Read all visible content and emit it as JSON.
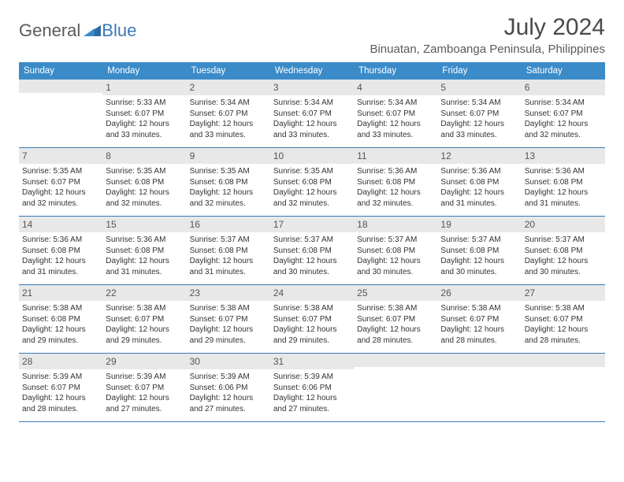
{
  "logo": {
    "word1": "General",
    "word2": "Blue"
  },
  "title": "July 2024",
  "location": "Binuatan, Zamboanga Peninsula, Philippines",
  "weekdays": [
    "Sunday",
    "Monday",
    "Tuesday",
    "Wednesday",
    "Thursday",
    "Friday",
    "Saturday"
  ],
  "colors": {
    "header_bg": "#3b8bc9",
    "row_border": "#3b7ab5",
    "daynum_bg": "#e8e8e8",
    "text": "#333333",
    "title_text": "#4a4a4a"
  },
  "typography": {
    "title_fontsize": 30,
    "location_fontsize": 15,
    "weekday_fontsize": 11.5,
    "cell_fontsize": 10,
    "daynum_fontsize": 12
  },
  "layout": {
    "columns": 7,
    "rows": 5,
    "leading_empty_cells": 1
  },
  "weeks": [
    [
      null,
      {
        "n": "1",
        "sunrise": "Sunrise: 5:33 AM",
        "sunset": "Sunset: 6:07 PM",
        "day1": "Daylight: 12 hours",
        "day2": "and 33 minutes."
      },
      {
        "n": "2",
        "sunrise": "Sunrise: 5:34 AM",
        "sunset": "Sunset: 6:07 PM",
        "day1": "Daylight: 12 hours",
        "day2": "and 33 minutes."
      },
      {
        "n": "3",
        "sunrise": "Sunrise: 5:34 AM",
        "sunset": "Sunset: 6:07 PM",
        "day1": "Daylight: 12 hours",
        "day2": "and 33 minutes."
      },
      {
        "n": "4",
        "sunrise": "Sunrise: 5:34 AM",
        "sunset": "Sunset: 6:07 PM",
        "day1": "Daylight: 12 hours",
        "day2": "and 33 minutes."
      },
      {
        "n": "5",
        "sunrise": "Sunrise: 5:34 AM",
        "sunset": "Sunset: 6:07 PM",
        "day1": "Daylight: 12 hours",
        "day2": "and 33 minutes."
      },
      {
        "n": "6",
        "sunrise": "Sunrise: 5:34 AM",
        "sunset": "Sunset: 6:07 PM",
        "day1": "Daylight: 12 hours",
        "day2": "and 32 minutes."
      }
    ],
    [
      {
        "n": "7",
        "sunrise": "Sunrise: 5:35 AM",
        "sunset": "Sunset: 6:07 PM",
        "day1": "Daylight: 12 hours",
        "day2": "and 32 minutes."
      },
      {
        "n": "8",
        "sunrise": "Sunrise: 5:35 AM",
        "sunset": "Sunset: 6:08 PM",
        "day1": "Daylight: 12 hours",
        "day2": "and 32 minutes."
      },
      {
        "n": "9",
        "sunrise": "Sunrise: 5:35 AM",
        "sunset": "Sunset: 6:08 PM",
        "day1": "Daylight: 12 hours",
        "day2": "and 32 minutes."
      },
      {
        "n": "10",
        "sunrise": "Sunrise: 5:35 AM",
        "sunset": "Sunset: 6:08 PM",
        "day1": "Daylight: 12 hours",
        "day2": "and 32 minutes."
      },
      {
        "n": "11",
        "sunrise": "Sunrise: 5:36 AM",
        "sunset": "Sunset: 6:08 PM",
        "day1": "Daylight: 12 hours",
        "day2": "and 32 minutes."
      },
      {
        "n": "12",
        "sunrise": "Sunrise: 5:36 AM",
        "sunset": "Sunset: 6:08 PM",
        "day1": "Daylight: 12 hours",
        "day2": "and 31 minutes."
      },
      {
        "n": "13",
        "sunrise": "Sunrise: 5:36 AM",
        "sunset": "Sunset: 6:08 PM",
        "day1": "Daylight: 12 hours",
        "day2": "and 31 minutes."
      }
    ],
    [
      {
        "n": "14",
        "sunrise": "Sunrise: 5:36 AM",
        "sunset": "Sunset: 6:08 PM",
        "day1": "Daylight: 12 hours",
        "day2": "and 31 minutes."
      },
      {
        "n": "15",
        "sunrise": "Sunrise: 5:36 AM",
        "sunset": "Sunset: 6:08 PM",
        "day1": "Daylight: 12 hours",
        "day2": "and 31 minutes."
      },
      {
        "n": "16",
        "sunrise": "Sunrise: 5:37 AM",
        "sunset": "Sunset: 6:08 PM",
        "day1": "Daylight: 12 hours",
        "day2": "and 31 minutes."
      },
      {
        "n": "17",
        "sunrise": "Sunrise: 5:37 AM",
        "sunset": "Sunset: 6:08 PM",
        "day1": "Daylight: 12 hours",
        "day2": "and 30 minutes."
      },
      {
        "n": "18",
        "sunrise": "Sunrise: 5:37 AM",
        "sunset": "Sunset: 6:08 PM",
        "day1": "Daylight: 12 hours",
        "day2": "and 30 minutes."
      },
      {
        "n": "19",
        "sunrise": "Sunrise: 5:37 AM",
        "sunset": "Sunset: 6:08 PM",
        "day1": "Daylight: 12 hours",
        "day2": "and 30 minutes."
      },
      {
        "n": "20",
        "sunrise": "Sunrise: 5:37 AM",
        "sunset": "Sunset: 6:08 PM",
        "day1": "Daylight: 12 hours",
        "day2": "and 30 minutes."
      }
    ],
    [
      {
        "n": "21",
        "sunrise": "Sunrise: 5:38 AM",
        "sunset": "Sunset: 6:08 PM",
        "day1": "Daylight: 12 hours",
        "day2": "and 29 minutes."
      },
      {
        "n": "22",
        "sunrise": "Sunrise: 5:38 AM",
        "sunset": "Sunset: 6:07 PM",
        "day1": "Daylight: 12 hours",
        "day2": "and 29 minutes."
      },
      {
        "n": "23",
        "sunrise": "Sunrise: 5:38 AM",
        "sunset": "Sunset: 6:07 PM",
        "day1": "Daylight: 12 hours",
        "day2": "and 29 minutes."
      },
      {
        "n": "24",
        "sunrise": "Sunrise: 5:38 AM",
        "sunset": "Sunset: 6:07 PM",
        "day1": "Daylight: 12 hours",
        "day2": "and 29 minutes."
      },
      {
        "n": "25",
        "sunrise": "Sunrise: 5:38 AM",
        "sunset": "Sunset: 6:07 PM",
        "day1": "Daylight: 12 hours",
        "day2": "and 28 minutes."
      },
      {
        "n": "26",
        "sunrise": "Sunrise: 5:38 AM",
        "sunset": "Sunset: 6:07 PM",
        "day1": "Daylight: 12 hours",
        "day2": "and 28 minutes."
      },
      {
        "n": "27",
        "sunrise": "Sunrise: 5:38 AM",
        "sunset": "Sunset: 6:07 PM",
        "day1": "Daylight: 12 hours",
        "day2": "and 28 minutes."
      }
    ],
    [
      {
        "n": "28",
        "sunrise": "Sunrise: 5:39 AM",
        "sunset": "Sunset: 6:07 PM",
        "day1": "Daylight: 12 hours",
        "day2": "and 28 minutes."
      },
      {
        "n": "29",
        "sunrise": "Sunrise: 5:39 AM",
        "sunset": "Sunset: 6:07 PM",
        "day1": "Daylight: 12 hours",
        "day2": "and 27 minutes."
      },
      {
        "n": "30",
        "sunrise": "Sunrise: 5:39 AM",
        "sunset": "Sunset: 6:06 PM",
        "day1": "Daylight: 12 hours",
        "day2": "and 27 minutes."
      },
      {
        "n": "31",
        "sunrise": "Sunrise: 5:39 AM",
        "sunset": "Sunset: 6:06 PM",
        "day1": "Daylight: 12 hours",
        "day2": "and 27 minutes."
      },
      null,
      null,
      null
    ]
  ]
}
